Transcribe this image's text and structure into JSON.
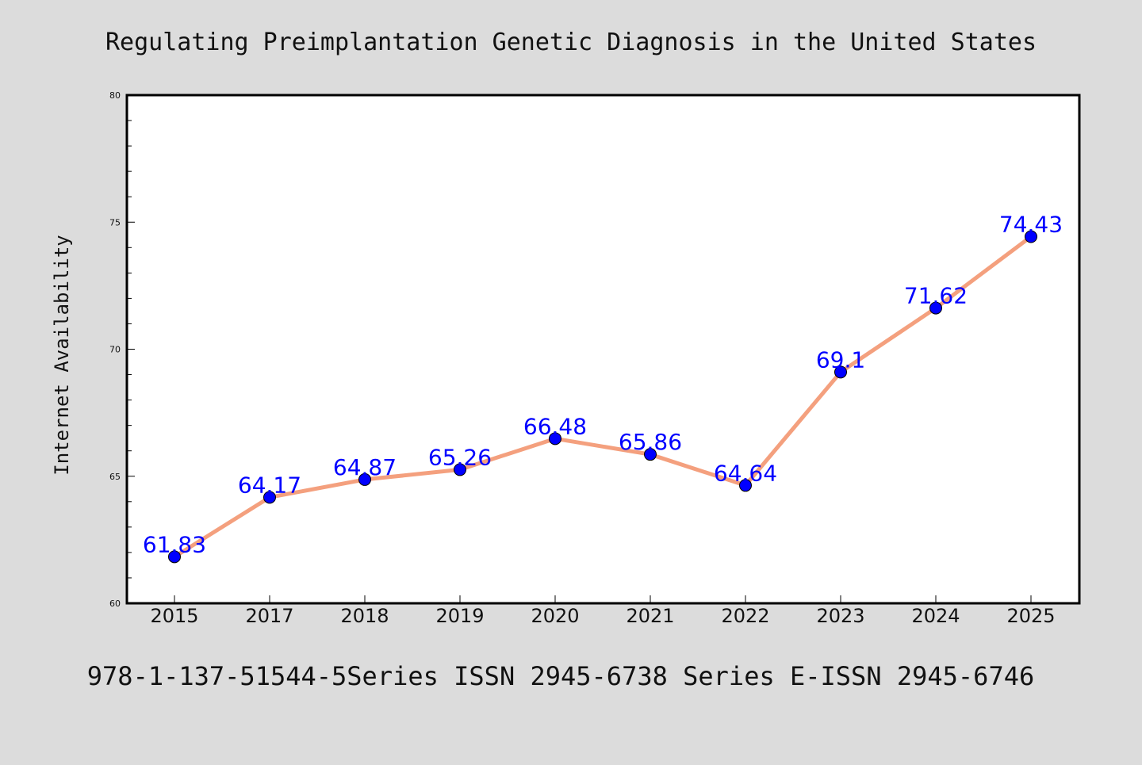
{
  "colors": {
    "background": "#dcdcdc",
    "plot_background": "#ffffff",
    "line": "#f4a07e",
    "marker": "#0000ff",
    "data_label": "#0000ff",
    "text": "#111111"
  },
  "chart_data": {
    "type": "line",
    "title": "Regulating Preimplantation Genetic Diagnosis in the United States",
    "ylabel": "Internet Availability",
    "xlabel": "",
    "categories": [
      "2015",
      "2017",
      "2018",
      "2019",
      "2020",
      "2021",
      "2022",
      "2023",
      "2024",
      "2025"
    ],
    "series": [
      {
        "values": [
          61.83,
          64.17,
          64.87,
          65.26,
          66.48,
          65.86,
          64.64,
          69.1,
          71.62,
          74.43
        ],
        "labels": [
          "61.83",
          "64.17",
          "64.87",
          "65.26",
          "66.48",
          "65.86",
          "64.64",
          "69.1",
          "71.62",
          "74.43"
        ]
      }
    ],
    "ylim": [
      60,
      80
    ],
    "yticks": [
      "60",
      "65",
      "70",
      "75",
      "80"
    ],
    "yminor_step": 1,
    "grid": false,
    "legend": "none"
  },
  "footer": {
    "text": "978-1-137-51544-5Series ISSN 2945-6738 Series E-ISSN 2945-6746"
  }
}
